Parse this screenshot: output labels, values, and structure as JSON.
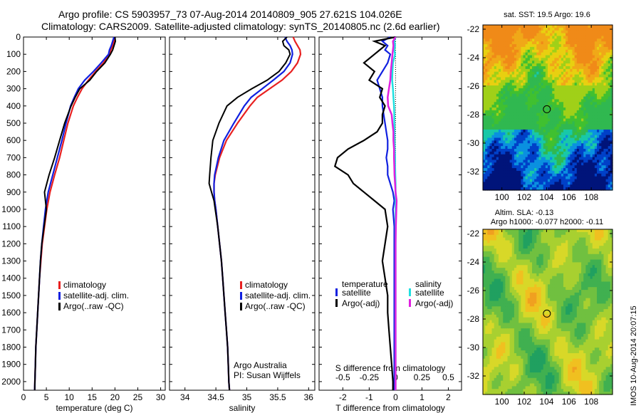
{
  "title": {
    "line1": "Argo profile: CS 5903957_73 07-Aug-2014 20140809_905 27.621S 104.026E",
    "line2": "Climatology: CARS2009. Satellite-adjusted climatology: synTS_20140805.nc (2.6d earlier)"
  },
  "side_label": "IMOS 10-Aug-2014 20:07:15",
  "colors": {
    "climatology": "#e82020",
    "satellite": "#1020e0",
    "argo": "#000000",
    "sat_sal": "#20e0e0",
    "argo_sal": "#e020e0"
  },
  "depth_ticks": [
    "0",
    "100",
    "200",
    "300",
    "400",
    "500",
    "600",
    "700",
    "800",
    "900",
    "1000",
    "1100",
    "1200",
    "1300",
    "1400",
    "1500",
    "1600",
    "1700",
    "1800",
    "1900",
    "2000"
  ],
  "legend_profiles": [
    "climatology",
    "satellite-adj. clim.",
    "Argo(..raw -QC)"
  ],
  "legend_diff": {
    "temperature": "temperature",
    "salinity": "salinity",
    "satellite": "satellite",
    "argo": "Argo(-adj)"
  },
  "salinity_note": {
    "line1": "Argo Australia",
    "line2": "PI: Susan Wijffels"
  },
  "diff_s_label": "S difference from climatology",
  "maps": {
    "sst_title": "sat. SST: 19.5 Argo: 19.6",
    "sla_title1": "Altim. SLA: -0.13",
    "sla_title2": "Argo h1000: -0.077 h2000: -0.11",
    "y_ticks": [
      "-22",
      "-24",
      "-26",
      "-28",
      "-30",
      "-32"
    ],
    "x_ticks": [
      "100",
      "102",
      "104",
      "106",
      "108"
    ],
    "argo_lon": 104.026,
    "argo_lat": -27.621,
    "lon_range": [
      98.3,
      109.9
    ],
    "lat_range": [
      -33.3,
      -21.7
    ]
  },
  "chart_data": [
    {
      "type": "line",
      "xlabel": "temperature (deg C)",
      "xlim": [
        0,
        31
      ],
      "ylim": [
        2050,
        0
      ],
      "xticks": [
        "0",
        "5",
        "10",
        "15",
        "20",
        "25",
        "30"
      ],
      "y": [
        0,
        25,
        50,
        75,
        100,
        150,
        200,
        250,
        300,
        350,
        400,
        500,
        600,
        700,
        800,
        900,
        1000,
        1100,
        1200,
        1300,
        1400,
        1500,
        1600,
        1700,
        1800,
        1900,
        2000,
        2050
      ],
      "series": [
        {
          "name": "climatology",
          "values": [
            20.0,
            19.8,
            19.5,
            19.1,
            18.8,
            17.5,
            15.8,
            14.2,
            12.8,
            11.8,
            10.9,
            9.7,
            8.8,
            7.9,
            6.8,
            5.8,
            5.1,
            4.6,
            4.1,
            3.8,
            3.5,
            3.3,
            3.1,
            2.9,
            2.7,
            2.6,
            2.5,
            2.45
          ]
        },
        {
          "name": "satellite-adj. clim.",
          "values": [
            19.8,
            19.5,
            19.2,
            18.8,
            18.6,
            17.0,
            15.3,
            13.4,
            12.0,
            11.1,
            10.3,
            9.3,
            8.4,
            7.4,
            6.4,
            5.4,
            4.8,
            4.4,
            4.0,
            3.7,
            3.5,
            3.3,
            3.1,
            2.9,
            2.7,
            2.6,
            2.5,
            2.45
          ]
        },
        {
          "name": "Argo(..raw -QC)",
          "values": [
            20.0,
            20.1,
            19.8,
            19.5,
            19.0,
            17.8,
            16.0,
            14.5,
            12.3,
            11.3,
            10.4,
            9.0,
            7.9,
            6.8,
            5.6,
            4.6,
            5.0,
            4.5,
            4.0,
            3.7,
            3.5,
            3.3,
            3.1,
            2.9,
            2.7,
            2.6,
            2.5,
            2.45
          ]
        }
      ]
    },
    {
      "type": "line",
      "xlabel": "salinity",
      "xlim": [
        33.75,
        36.1
      ],
      "ylim": [
        2050,
        0
      ],
      "xticks": [
        "34",
        "34.5",
        "35",
        "35.5",
        "36"
      ],
      "y": [
        0,
        25,
        50,
        75,
        100,
        150,
        200,
        250,
        300,
        350,
        400,
        500,
        600,
        700,
        800,
        850,
        900,
        950,
        1000,
        1100,
        1200,
        1300,
        1400,
        1500,
        1600,
        1700,
        1800,
        1900,
        2000,
        2050
      ],
      "series": [
        {
          "name": "climatology",
          "values": [
            35.75,
            35.78,
            35.82,
            35.86,
            35.87,
            35.82,
            35.72,
            35.57,
            35.37,
            35.17,
            35.05,
            34.85,
            34.67,
            34.56,
            34.49,
            34.47,
            34.47,
            34.48,
            34.5,
            34.53,
            34.56,
            34.59,
            34.61,
            34.63,
            34.65,
            34.67,
            34.69,
            34.7,
            34.71,
            34.72
          ]
        },
        {
          "name": "satellite-adj. clim.",
          "values": [
            35.62,
            35.65,
            35.7,
            35.73,
            35.74,
            35.7,
            35.6,
            35.43,
            35.25,
            35.07,
            34.96,
            34.79,
            34.63,
            34.54,
            34.48,
            34.47,
            34.47,
            34.48,
            34.5,
            34.53,
            34.56,
            34.59,
            34.61,
            34.63,
            34.65,
            34.67,
            34.69,
            34.7,
            34.71,
            34.72
          ]
        },
        {
          "name": "Argo(..raw -QC)",
          "values": [
            35.65,
            35.58,
            35.6,
            35.68,
            35.7,
            35.63,
            35.52,
            35.33,
            35.08,
            34.85,
            34.68,
            34.55,
            34.45,
            34.42,
            34.4,
            34.39,
            34.43,
            34.47,
            34.49,
            34.53,
            34.56,
            34.59,
            34.61,
            34.63,
            34.65,
            34.67,
            34.69,
            34.7,
            34.71,
            34.72
          ]
        }
      ]
    },
    {
      "type": "line",
      "xlabel": "T difference from climatology",
      "xlim": [
        -2.9,
        2.5
      ],
      "ylim": [
        2050,
        0
      ],
      "xticks": [
        "-2",
        "-1",
        "0",
        "1",
        "2"
      ],
      "top_xticks": [
        "-0.5",
        "-0.25",
        "0",
        "0.25",
        "0.5"
      ],
      "top_xlim": [
        -0.725,
        0.625
      ],
      "y": [
        0,
        25,
        50,
        75,
        100,
        150,
        200,
        250,
        300,
        350,
        400,
        450,
        500,
        550,
        600,
        650,
        700,
        750,
        800,
        850,
        900,
        950,
        1000,
        1100,
        1200,
        1300,
        1400,
        1500,
        1600,
        1700,
        1800,
        1900,
        2000,
        2050
      ],
      "series": [
        {
          "name": "temperature satellite",
          "values": [
            -0.2,
            -0.5,
            -0.3,
            -0.4,
            -0.2,
            -0.3,
            -0.5,
            -0.7,
            -0.6,
            -0.5,
            -0.5,
            -0.45,
            -0.4,
            -0.35,
            -0.3,
            -0.3,
            -0.35,
            -0.3,
            -0.3,
            -0.2,
            -0.1,
            -0.05,
            -0.1,
            -0.05,
            -0.05,
            -0.05,
            -0.05,
            -0.05,
            -0.05,
            -0.05,
            -0.05,
            -0.05,
            -0.05,
            -0.05
          ]
        },
        {
          "name": "temperature Argo(-adj)",
          "values": [
            0.0,
            -0.8,
            -0.4,
            -0.6,
            -0.8,
            -1.2,
            -0.8,
            -1.0,
            -0.5,
            -0.6,
            -0.4,
            -0.5,
            -0.5,
            -0.7,
            -1.2,
            -1.8,
            -2.2,
            -2.3,
            -1.8,
            -1.6,
            -1.2,
            -0.8,
            -0.4,
            -0.3,
            -0.4,
            -0.5,
            -0.4,
            -0.3,
            -0.3,
            -0.25,
            -0.2,
            -0.15,
            -0.1,
            -0.1
          ]
        },
        {
          "name": "salinity satellite",
          "values": [
            0.0,
            -0.05,
            -0.02,
            -0.05,
            -0.02,
            -0.1,
            -0.12,
            -0.13,
            -0.1,
            -0.08,
            -0.06,
            -0.05,
            -0.05,
            -0.04,
            -0.04,
            -0.03,
            -0.02,
            -0.02,
            -0.01,
            0.0,
            0.0,
            0.0,
            0.0,
            0.0,
            0.0,
            0.0,
            0.0,
            0.0,
            0.0,
            0.0,
            0.0,
            0.0,
            0.0,
            0.0
          ]
        },
        {
          "name": "salinity Argo(-adj)",
          "values": [
            0.0,
            -0.1,
            -0.08,
            -0.1,
            -0.12,
            -0.15,
            -0.18,
            -0.2,
            -0.25,
            -0.3,
            -0.28,
            -0.15,
            -0.12,
            -0.08,
            -0.08,
            -0.06,
            -0.06,
            -0.05,
            -0.04,
            -0.02,
            0.0,
            0.04,
            0.03,
            0.01,
            0.0,
            0.0,
            0.0,
            0.0,
            0.0,
            0.0,
            0.0,
            0.0,
            0.0,
            0.0
          ]
        }
      ]
    }
  ]
}
